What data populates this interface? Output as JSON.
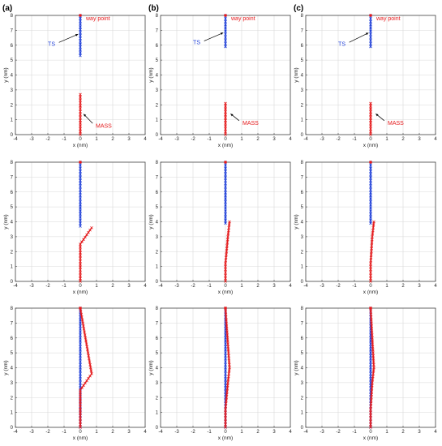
{
  "panel_labels": [
    "(a)",
    "(b)",
    "(c)"
  ],
  "colors": {
    "ts": "#1f3fd8",
    "mass": "#e41a1c",
    "grid": "#d8d8d8"
  },
  "chart_data": [
    {
      "type": "line",
      "panel": "(a)",
      "row": 0,
      "col": 0,
      "xlabel": "x (nm)",
      "ylabel": "y (nm)",
      "xlim": [
        -4,
        4
      ],
      "ylim": [
        0,
        8
      ],
      "xticks": [
        "-4",
        "-3",
        "-2",
        "-1",
        "0",
        "1",
        "2",
        "3",
        "4"
      ],
      "yticks": [
        "0",
        "1",
        "2",
        "3",
        "4",
        "5",
        "6",
        "7",
        "8"
      ],
      "grid": true,
      "series": [
        {
          "name": "TS",
          "color": "#1f3fd8",
          "marker": "x",
          "points": [
            [
              0,
              8
            ],
            [
              0,
              5.3
            ]
          ]
        },
        {
          "name": "MASS",
          "color": "#e41a1c",
          "marker": "x",
          "points": [
            [
              0,
              0
            ],
            [
              0,
              2.7
            ]
          ]
        }
      ],
      "waypoint": [
        0,
        8
      ],
      "annotations": [
        {
          "text": "way point",
          "color": "#e41a1c",
          "target": [
            0,
            8
          ],
          "text_pos": [
            0.3,
            7.8
          ]
        },
        {
          "text": "TS",
          "color": "#1f3fd8",
          "target": [
            0,
            6.8
          ],
          "text_pos": [
            -1.5,
            6.1
          ]
        },
        {
          "text": "MASS",
          "color": "#e41a1c",
          "target": [
            0.1,
            1.5
          ],
          "text_pos": [
            0.9,
            0.6
          ]
        }
      ]
    },
    {
      "type": "line",
      "panel": "(b)",
      "row": 0,
      "col": 1,
      "xlabel": "x (nm)",
      "ylabel": "y (nm)",
      "xlim": [
        -4,
        4
      ],
      "ylim": [
        0,
        8
      ],
      "xticks": [
        "-4",
        "-3",
        "-2",
        "-1",
        "0",
        "1",
        "2",
        "3",
        "4"
      ],
      "yticks": [
        "0",
        "1",
        "2",
        "3",
        "4",
        "5",
        "6",
        "7",
        "8"
      ],
      "grid": true,
      "series": [
        {
          "name": "TS",
          "color": "#1f3fd8",
          "marker": "x",
          "points": [
            [
              0,
              8
            ],
            [
              0,
              5.9
            ]
          ]
        },
        {
          "name": "MASS",
          "color": "#e41a1c",
          "marker": "x",
          "points": [
            [
              0,
              0
            ],
            [
              0,
              2.1
            ]
          ]
        }
      ],
      "waypoint": [
        0,
        8
      ],
      "annotations": [
        {
          "text": "way point",
          "color": "#e41a1c",
          "target": [
            0,
            8
          ],
          "text_pos": [
            0.3,
            7.8
          ]
        },
        {
          "text": "TS",
          "color": "#1f3fd8",
          "target": [
            0,
            6.9
          ],
          "text_pos": [
            -1.5,
            6.2
          ]
        },
        {
          "text": "MASS",
          "color": "#e41a1c",
          "target": [
            0.2,
            1.5
          ],
          "text_pos": [
            1.0,
            0.8
          ]
        }
      ]
    },
    {
      "type": "line",
      "panel": "(c)",
      "row": 0,
      "col": 2,
      "xlabel": "x (nm)",
      "ylabel": "y (nm)",
      "xlim": [
        -4,
        4
      ],
      "ylim": [
        0,
        8
      ],
      "xticks": [
        "-4",
        "-3",
        "-2",
        "-1",
        "0",
        "1",
        "2",
        "3",
        "4"
      ],
      "yticks": [
        "0",
        "1",
        "2",
        "3",
        "4",
        "5",
        "6",
        "7",
        "8"
      ],
      "grid": true,
      "series": [
        {
          "name": "TS",
          "color": "#1f3fd8",
          "marker": "x",
          "points": [
            [
              0,
              8
            ],
            [
              0,
              5.9
            ]
          ]
        },
        {
          "name": "MASS",
          "color": "#e41a1c",
          "marker": "x",
          "points": [
            [
              0,
              0
            ],
            [
              0,
              2.1
            ]
          ]
        }
      ],
      "waypoint": [
        0,
        8
      ],
      "annotations": [
        {
          "text": "way point",
          "color": "#e41a1c",
          "target": [
            0,
            8
          ],
          "text_pos": [
            0.3,
            7.8
          ]
        },
        {
          "text": "TS",
          "color": "#1f3fd8",
          "target": [
            0,
            6.9
          ],
          "text_pos": [
            -1.5,
            6.1
          ]
        },
        {
          "text": "MASS",
          "color": "#e41a1c",
          "target": [
            0.2,
            1.5
          ],
          "text_pos": [
            1.0,
            0.8
          ]
        }
      ]
    },
    {
      "type": "line",
      "panel": "(a)",
      "row": 1,
      "col": 0,
      "xlabel": "x (nm)",
      "ylabel": "y (nm)",
      "xlim": [
        -4,
        4
      ],
      "ylim": [
        0,
        8
      ],
      "xticks": [
        "-4",
        "-3",
        "-2",
        "-1",
        "0",
        "1",
        "2",
        "3",
        "4"
      ],
      "yticks": [
        "0",
        "1",
        "2",
        "3",
        "4",
        "5",
        "6",
        "7",
        "8"
      ],
      "grid": true,
      "series": [
        {
          "name": "TS",
          "color": "#1f3fd8",
          "marker": "x",
          "points": [
            [
              0,
              8
            ],
            [
              0,
              3.7
            ]
          ]
        },
        {
          "name": "MASS",
          "color": "#e41a1c",
          "marker": "x",
          "points": [
            [
              0,
              0
            ],
            [
              0,
              2.5
            ],
            [
              0.7,
              3.6
            ]
          ]
        }
      ],
      "waypoint": [
        0,
        8
      ],
      "annotations": []
    },
    {
      "type": "line",
      "panel": "(b)",
      "row": 1,
      "col": 1,
      "xlabel": "x (nm)",
      "ylabel": "y (nm)",
      "xlim": [
        -4,
        4
      ],
      "ylim": [
        0,
        8
      ],
      "xticks": [
        "-4",
        "-3",
        "-2",
        "-1",
        "0",
        "1",
        "2",
        "3",
        "4"
      ],
      "yticks": [
        "0",
        "1",
        "2",
        "3",
        "4",
        "5",
        "6",
        "7",
        "8"
      ],
      "grid": true,
      "series": [
        {
          "name": "TS",
          "color": "#1f3fd8",
          "marker": "x",
          "points": [
            [
              0,
              8
            ],
            [
              0,
              3.9
            ]
          ]
        },
        {
          "name": "MASS",
          "color": "#e41a1c",
          "marker": "x",
          "points": [
            [
              0,
              0
            ],
            [
              0,
              1.2
            ],
            [
              0.15,
              3.0
            ],
            [
              0.25,
              4.0
            ]
          ]
        }
      ],
      "waypoint": [
        0,
        8
      ],
      "annotations": []
    },
    {
      "type": "line",
      "panel": "(c)",
      "row": 1,
      "col": 2,
      "xlabel": "x (nm)",
      "ylabel": "y (nm)",
      "xlim": [
        -4,
        4
      ],
      "ylim": [
        0,
        8
      ],
      "xticks": [
        "-4",
        "-3",
        "-2",
        "-1",
        "0",
        "1",
        "2",
        "3",
        "4"
      ],
      "yticks": [
        "0",
        "1",
        "2",
        "3",
        "4",
        "5",
        "6",
        "7",
        "8"
      ],
      "grid": true,
      "series": [
        {
          "name": "TS",
          "color": "#1f3fd8",
          "marker": "x",
          "points": [
            [
              0,
              8
            ],
            [
              0,
              3.9
            ]
          ]
        },
        {
          "name": "MASS",
          "color": "#e41a1c",
          "marker": "x",
          "points": [
            [
              0,
              0
            ],
            [
              0,
              1.2
            ],
            [
              0.1,
              3.0
            ],
            [
              0.2,
              4.0
            ]
          ]
        }
      ],
      "waypoint": [
        0,
        8
      ],
      "annotations": []
    },
    {
      "type": "line",
      "panel": "(a)",
      "row": 2,
      "col": 0,
      "xlabel": "x (nm)",
      "ylabel": "y (nm)",
      "xlim": [
        -4,
        4
      ],
      "ylim": [
        0,
        8
      ],
      "xticks": [
        "-4",
        "-3",
        "-2",
        "-1",
        "0",
        "1",
        "2",
        "3",
        "4"
      ],
      "yticks": [
        "0",
        "1",
        "2",
        "3",
        "4",
        "5",
        "6",
        "7",
        "8"
      ],
      "grid": true,
      "series": [
        {
          "name": "TS",
          "color": "#1f3fd8",
          "marker": "x",
          "points": [
            [
              0,
              8
            ],
            [
              0,
              0
            ]
          ]
        },
        {
          "name": "MASS",
          "color": "#e41a1c",
          "marker": "x",
          "points": [
            [
              0,
              0
            ],
            [
              0,
              2.5
            ],
            [
              0.7,
              3.6
            ],
            [
              0,
              8
            ]
          ]
        }
      ],
      "waypoint": [
        0,
        8
      ],
      "annotations": []
    },
    {
      "type": "line",
      "panel": "(b)",
      "row": 2,
      "col": 1,
      "xlabel": "x (nm)",
      "ylabel": "y (nm)",
      "xlim": [
        -4,
        4
      ],
      "ylim": [
        0,
        8
      ],
      "xticks": [
        "-4",
        "-3",
        "-2",
        "-1",
        "0",
        "1",
        "2",
        "3",
        "4"
      ],
      "yticks": [
        "0",
        "1",
        "2",
        "3",
        "4",
        "5",
        "6",
        "7",
        "8"
      ],
      "grid": true,
      "series": [
        {
          "name": "TS",
          "color": "#1f3fd8",
          "marker": "x",
          "points": [
            [
              0,
              8
            ],
            [
              0,
              0
            ]
          ]
        },
        {
          "name": "MASS",
          "color": "#e41a1c",
          "marker": "x",
          "points": [
            [
              0,
              0
            ],
            [
              0,
              1.2
            ],
            [
              0.15,
              3.0
            ],
            [
              0.25,
              4.0
            ],
            [
              0,
              8
            ]
          ]
        }
      ],
      "waypoint": [
        0,
        8
      ],
      "annotations": []
    },
    {
      "type": "line",
      "panel": "(c)",
      "row": 2,
      "col": 2,
      "xlabel": "x (nm)",
      "ylabel": "y (nm)",
      "xlim": [
        -4,
        4
      ],
      "ylim": [
        0,
        8
      ],
      "xticks": [
        "-4",
        "-3",
        "-2",
        "-1",
        "0",
        "1",
        "2",
        "3",
        "4"
      ],
      "yticks": [
        "0",
        "1",
        "2",
        "3",
        "4",
        "5",
        "6",
        "7",
        "8"
      ],
      "grid": true,
      "series": [
        {
          "name": "TS",
          "color": "#1f3fd8",
          "marker": "x",
          "points": [
            [
              0,
              8
            ],
            [
              0,
              0
            ]
          ]
        },
        {
          "name": "MASS",
          "color": "#e41a1c",
          "marker": "x",
          "points": [
            [
              0,
              0
            ],
            [
              0,
              1.2
            ],
            [
              0.1,
              3.0
            ],
            [
              0.2,
              4.0
            ],
            [
              0,
              8
            ]
          ]
        }
      ],
      "waypoint": [
        0,
        8
      ],
      "annotations": []
    }
  ]
}
